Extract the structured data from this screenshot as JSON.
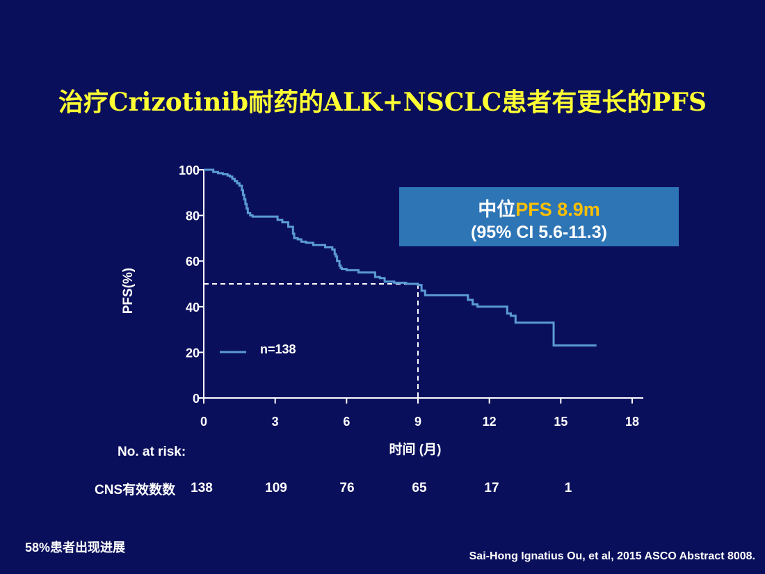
{
  "slide": {
    "title": "治疗Crizotinib耐药的ALK+NSCLC患者有更长的PFS",
    "footnote": "58%患者出现进展",
    "citation": "Sai-Hong Ignatius Ou, et al, 2015 ASCO Abstract  8008."
  },
  "median_box": {
    "prefix": "中位",
    "highlight": "PFS 8.9m",
    "ci": "(95% CI 5.6-11.3)"
  },
  "risk_table": {
    "title": "No. at risk:",
    "row_label": "CNS有效数数",
    "values": [
      "138",
      "109",
      "76",
      "65",
      "17",
      "1"
    ]
  },
  "colors": {
    "background": "#0a0f5c",
    "title": "#ffff33",
    "curve": "#5b9bd5",
    "box": "#2e75b6",
    "highlight": "#ffc000"
  },
  "chart_data": {
    "type": "line",
    "xlabel": "时间 (月)",
    "ylabel": "PFS(%)",
    "xlim": [
      0,
      18
    ],
    "ylim": [
      0,
      100
    ],
    "xticks": [
      0,
      3,
      6,
      9,
      12,
      15,
      18
    ],
    "yticks": [
      0,
      20,
      40,
      60,
      80,
      100
    ],
    "legend": "n=138",
    "median_x": 9,
    "median_y": 50,
    "series": [
      {
        "name": "n=138",
        "x": [
          0,
          0.4,
          0.6,
          0.8,
          1.0,
          1.1,
          1.2,
          1.3,
          1.4,
          1.5,
          1.6,
          1.65,
          1.7,
          1.75,
          1.8,
          1.85,
          1.95,
          2.05,
          3.1,
          3.3,
          3.55,
          3.75,
          3.8,
          3.95,
          4.1,
          4.3,
          4.6,
          5.1,
          5.4,
          5.5,
          5.55,
          5.6,
          5.7,
          5.75,
          5.8,
          6.0,
          6.5,
          7.2,
          7.4,
          7.6,
          8.0,
          8.5,
          9.0,
          9.15,
          9.3,
          11.1,
          11.3,
          11.5,
          12.75,
          12.9,
          13.1,
          14.7,
          16.5
        ],
        "y": [
          100,
          99,
          98.5,
          98,
          97.5,
          97,
          96,
          95,
          94,
          93,
          91,
          89,
          87,
          85,
          83,
          81,
          80,
          79.5,
          78,
          77,
          75,
          72,
          70,
          69.5,
          68.5,
          68,
          67,
          66,
          65,
          63,
          62,
          60,
          58,
          57,
          56.5,
          56,
          55,
          53,
          52.5,
          51,
          50.5,
          50,
          49.5,
          47,
          45,
          43,
          41,
          40,
          37,
          36,
          33,
          23,
          23
        ]
      }
    ]
  }
}
